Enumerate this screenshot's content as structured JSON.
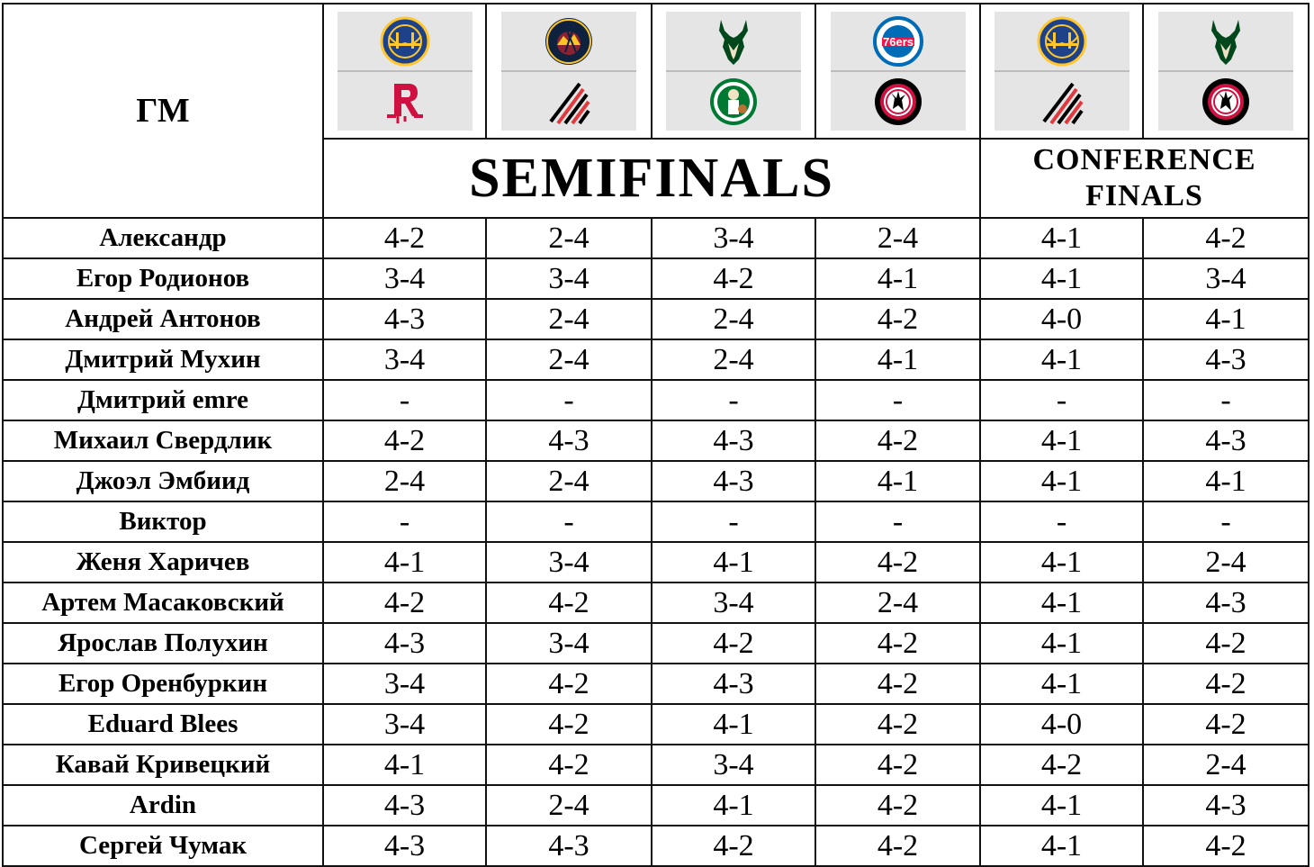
{
  "header": {
    "gm_label": "ГМ",
    "semifinals_label": "SEMIFINALS",
    "conference_label_line1": "CONFERENCE",
    "conference_label_line2": "FINALS"
  },
  "matchups": [
    {
      "top_logo": "warriors-logo",
      "bottom_logo": "rockets-logo"
    },
    {
      "top_logo": "nuggets-logo",
      "bottom_logo": "trail-blazers-logo"
    },
    {
      "top_logo": "bucks-logo",
      "bottom_logo": "celtics-logo"
    },
    {
      "top_logo": "76ers-logo",
      "bottom_logo": "raptors-logo"
    },
    {
      "top_logo": "warriors-logo",
      "bottom_logo": "trail-blazers-logo"
    },
    {
      "top_logo": "bucks-logo",
      "bottom_logo": "raptors-logo"
    }
  ],
  "colors": {
    "warriors_blue": "#1d428a",
    "warriors_gold": "#ffc72c",
    "rockets_red": "#ce1141",
    "nuggets_navy": "#0e2240",
    "nuggets_gold": "#fec524",
    "blazers_red": "#e03a3e",
    "bucks_green": "#00471b",
    "bucks_cream": "#eee1c6",
    "celtics_green": "#007a33",
    "sixers_blue": "#006bb6",
    "sixers_red": "#ed174c",
    "raptors_red": "#ce1141",
    "logo_bg": "#e5e5e5"
  },
  "rows": [
    {
      "name": "Александр",
      "picks": [
        "4-2",
        "2-4",
        "3-4",
        "2-4",
        "4-1",
        "4-2"
      ]
    },
    {
      "name": "Егор Родионов",
      "picks": [
        "3-4",
        "3-4",
        "4-2",
        "4-1",
        "4-1",
        "3-4"
      ]
    },
    {
      "name": "Андрей Антонов",
      "picks": [
        "4-3",
        "2-4",
        "2-4",
        "4-2",
        "4-0",
        "4-1"
      ]
    },
    {
      "name": "Дмитрий Мухин",
      "picks": [
        "3-4",
        "2-4",
        "2-4",
        "4-1",
        "4-1",
        "4-3"
      ]
    },
    {
      "name": "Дмитрий emre",
      "picks": [
        "-",
        "-",
        "-",
        "-",
        "-",
        "-"
      ]
    },
    {
      "name": "Михаил Свердлик",
      "picks": [
        "4-2",
        "4-3",
        "4-3",
        "4-2",
        "4-1",
        "4-3"
      ]
    },
    {
      "name": "Джоэл Эмбиид",
      "picks": [
        "2-4",
        "2-4",
        "4-3",
        "4-1",
        "4-1",
        "4-1"
      ]
    },
    {
      "name": "Виктор",
      "picks": [
        "-",
        "-",
        "-",
        "-",
        "-",
        "-"
      ]
    },
    {
      "name": "Женя Харичев",
      "picks": [
        "4-1",
        "3-4",
        "4-1",
        "4-2",
        "4-1",
        "2-4"
      ]
    },
    {
      "name": "Артем Масаковский",
      "picks": [
        "4-2",
        "4-2",
        "3-4",
        "2-4",
        "4-1",
        "4-3"
      ]
    },
    {
      "name": "Ярослав Полухин",
      "picks": [
        "4-3",
        "3-4",
        "4-2",
        "4-2",
        "4-1",
        "4-2"
      ]
    },
    {
      "name": "Егор Оренбуркин",
      "picks": [
        "3-4",
        "4-2",
        "4-3",
        "4-2",
        "4-1",
        "4-2"
      ]
    },
    {
      "name": "Eduard Blees",
      "picks": [
        "3-4",
        "4-2",
        "4-1",
        "4-2",
        "4-0",
        "4-2"
      ]
    },
    {
      "name": "Кавай Кривецкий",
      "picks": [
        "4-1",
        "4-2",
        "3-4",
        "4-2",
        "4-2",
        "2-4"
      ]
    },
    {
      "name": "Ardin",
      "picks": [
        "4-3",
        "2-4",
        "4-1",
        "4-2",
        "4-1",
        "4-3"
      ]
    },
    {
      "name": "Сергей Чумак",
      "picks": [
        "4-3",
        "4-3",
        "4-2",
        "4-2",
        "4-1",
        "4-2"
      ]
    }
  ]
}
